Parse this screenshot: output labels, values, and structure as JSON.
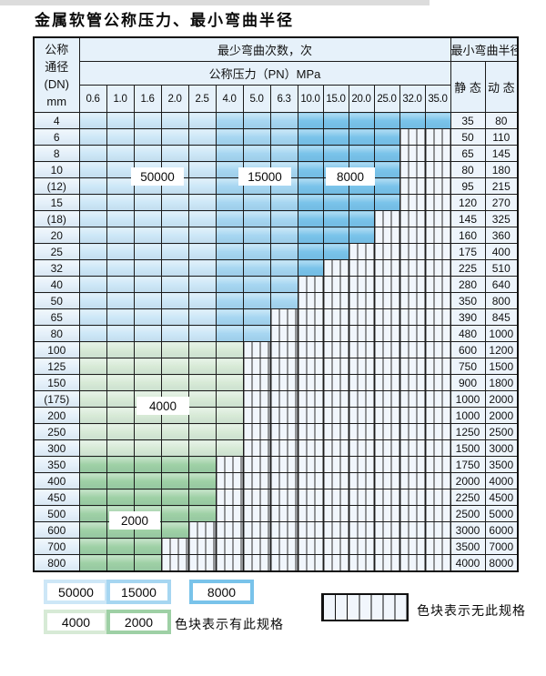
{
  "title": "金属软管公称压力、最小弯曲半径",
  "colors": {
    "c50000": "#cde7f7",
    "c15000": "#a6d6f1",
    "c8000": "#79c3ea",
    "c4000": "#d7ead6",
    "c2000": "#9ed0a5",
    "header_bg": "#e6f1fa",
    "dn_bg": "#e3eff9",
    "val_bg": "#edf4fb",
    "striped_bg": "#f1f6fc",
    "stripe_line": "#2e2e2e",
    "grid_line": "#1c1c1c"
  },
  "table": {
    "corner_header": [
      "公称",
      "通径",
      "(DN)",
      "mm"
    ],
    "bend_cycles_header": "最少弯曲次数，次",
    "pressure_header": "公称压力（PN）MPa",
    "pressure_columns": [
      "0.6",
      "1.0",
      "1.6",
      "2.0",
      "2.5",
      "4.0",
      "5.0",
      "6.3",
      "10.0",
      "15.0",
      "20.0",
      "25.0",
      "32.0",
      "35.0"
    ],
    "radius_header": "最小弯曲半径",
    "static_header": "静 态",
    "dynamic_header": "动 态",
    "blue_bands": [
      {
        "through": "2.5",
        "cycles": "50000"
      },
      {
        "through": "6.3",
        "cycles": "15000"
      },
      {
        "through": "35.0",
        "cycles": "8000"
      }
    ],
    "rows": [
      {
        "dn": "4",
        "zone": "blue",
        "specs_through": "35.0",
        "static": "35",
        "dynamic": "80"
      },
      {
        "dn": "6",
        "zone": "blue",
        "specs_through": "25.0",
        "static": "50",
        "dynamic": "110"
      },
      {
        "dn": "8",
        "zone": "blue",
        "specs_through": "25.0",
        "static": "65",
        "dynamic": "145"
      },
      {
        "dn": "10",
        "zone": "blue",
        "specs_through": "25.0",
        "static": "80",
        "dynamic": "180"
      },
      {
        "dn": "(12)",
        "zone": "blue",
        "specs_through": "25.0",
        "static": "95",
        "dynamic": "215"
      },
      {
        "dn": "15",
        "zone": "blue",
        "specs_through": "25.0",
        "static": "120",
        "dynamic": "270"
      },
      {
        "dn": "(18)",
        "zone": "blue",
        "specs_through": "20.0",
        "static": "145",
        "dynamic": "325"
      },
      {
        "dn": "20",
        "zone": "blue",
        "specs_through": "20.0",
        "static": "160",
        "dynamic": "360"
      },
      {
        "dn": "25",
        "zone": "blue",
        "specs_through": "15.0",
        "static": "175",
        "dynamic": "400"
      },
      {
        "dn": "32",
        "zone": "blue",
        "specs_through": "10.0",
        "static": "225",
        "dynamic": "510"
      },
      {
        "dn": "40",
        "zone": "blue",
        "specs_through": "6.3",
        "static": "280",
        "dynamic": "640"
      },
      {
        "dn": "50",
        "zone": "blue",
        "specs_through": "6.3",
        "static": "350",
        "dynamic": "800"
      },
      {
        "dn": "65",
        "zone": "blue",
        "specs_through": "5.0",
        "static": "390",
        "dynamic": "845"
      },
      {
        "dn": "80",
        "zone": "blue",
        "specs_through": "5.0",
        "static": "480",
        "dynamic": "1000"
      },
      {
        "dn": "100",
        "zone": "green4000",
        "specs_through": "4.0",
        "static": "600",
        "dynamic": "1200"
      },
      {
        "dn": "125",
        "zone": "green4000",
        "specs_through": "4.0",
        "static": "750",
        "dynamic": "1500"
      },
      {
        "dn": "150",
        "zone": "green4000",
        "specs_through": "4.0",
        "static": "900",
        "dynamic": "1800"
      },
      {
        "dn": "(175)",
        "zone": "green4000",
        "specs_through": "4.0",
        "static": "1000",
        "dynamic": "2000"
      },
      {
        "dn": "200",
        "zone": "green4000",
        "specs_through": "4.0",
        "static": "1000",
        "dynamic": "2000"
      },
      {
        "dn": "250",
        "zone": "green4000",
        "specs_through": "4.0",
        "static": "1250",
        "dynamic": "2500"
      },
      {
        "dn": "300",
        "zone": "green4000",
        "specs_through": "4.0",
        "static": "1500",
        "dynamic": "3000"
      },
      {
        "dn": "350",
        "zone": "green2000",
        "specs_through": "2.5",
        "static": "1750",
        "dynamic": "3500"
      },
      {
        "dn": "400",
        "zone": "green2000",
        "specs_through": "2.5",
        "static": "2000",
        "dynamic": "4000"
      },
      {
        "dn": "450",
        "zone": "green2000",
        "specs_through": "2.5",
        "static": "2250",
        "dynamic": "4500"
      },
      {
        "dn": "500",
        "zone": "green2000",
        "specs_through": "2.5",
        "static": "2500",
        "dynamic": "5000"
      },
      {
        "dn": "600",
        "zone": "green2000",
        "specs_through": "2.0",
        "static": "3000",
        "dynamic": "6000"
      },
      {
        "dn": "700",
        "zone": "green2000",
        "specs_through": "1.6",
        "static": "3500",
        "dynamic": "7000"
      },
      {
        "dn": "800",
        "zone": "green2000",
        "specs_through": "1.6",
        "static": "4000",
        "dynamic": "8000"
      }
    ]
  },
  "overlays": {
    "v50000": "50000",
    "v15000": "15000",
    "v8000": "8000",
    "v4000": "4000",
    "v2000": "2000"
  },
  "legend": {
    "items": [
      {
        "value": "50000",
        "color_key": "c50000"
      },
      {
        "value": "15000",
        "color_key": "c15000"
      },
      {
        "value": "8000",
        "color_key": "c8000"
      },
      {
        "value": "4000",
        "color_key": "c4000"
      },
      {
        "value": "2000",
        "color_key": "c2000"
      }
    ],
    "has_spec_note": "色块表示有此规格",
    "no_spec_note": "色块表示无此规格"
  }
}
